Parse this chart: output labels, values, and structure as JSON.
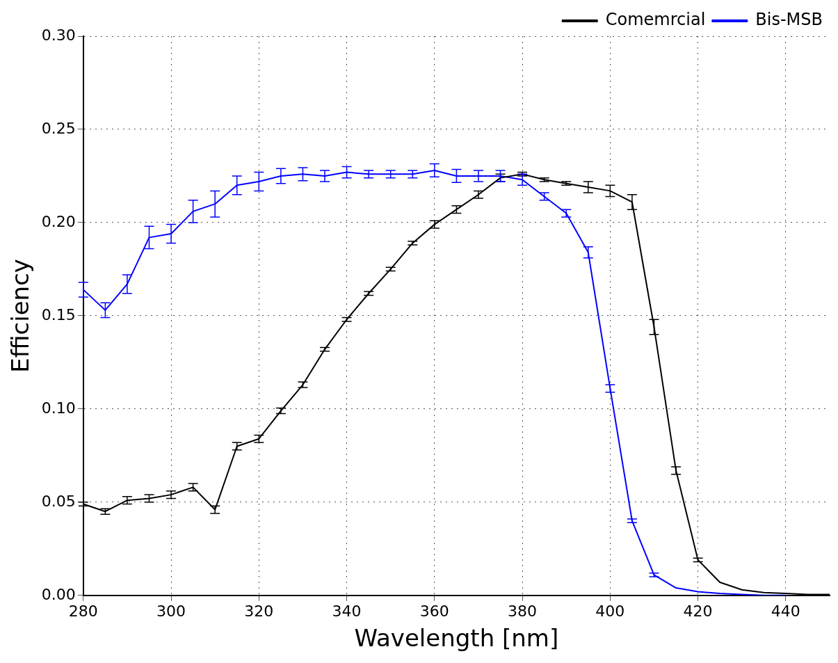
{
  "chart_data": {
    "type": "line",
    "xlabel": "Wavelength [nm]",
    "ylabel": "Efficiency",
    "x": [
      280,
      285,
      290,
      295,
      300,
      305,
      310,
      315,
      320,
      325,
      330,
      335,
      340,
      345,
      350,
      355,
      360,
      365,
      370,
      375,
      380,
      385,
      390,
      395,
      400,
      405,
      410,
      415,
      420,
      425,
      430,
      435,
      440,
      445,
      450
    ],
    "series": [
      {
        "name": "Comemrcial",
        "color": "#000000",
        "values": [
          0.049,
          0.045,
          0.051,
          0.052,
          0.054,
          0.058,
          0.046,
          0.08,
          0.084,
          0.099,
          0.113,
          0.132,
          0.148,
          0.162,
          0.175,
          0.189,
          0.199,
          0.207,
          0.215,
          0.224,
          0.226,
          0.223,
          0.221,
          0.219,
          0.217,
          0.211,
          0.144,
          0.067,
          0.019,
          0.007,
          0.003,
          0.0015,
          0.001,
          0.0005,
          0.0005
        ],
        "errors": [
          0.001,
          0.0015,
          0.002,
          0.002,
          0.002,
          0.002,
          0.002,
          0.002,
          0.002,
          0.0015,
          0.0015,
          0.001,
          0.001,
          0.001,
          0.001,
          0.001,
          0.002,
          0.002,
          0.002,
          0.002,
          0.001,
          0.001,
          0.001,
          0.003,
          0.003,
          0.004,
          0.004,
          0.002,
          0.001,
          null,
          null,
          null,
          null,
          null,
          null
        ]
      },
      {
        "name": "Bis-MSB",
        "color": "#0000ff",
        "values": [
          0.164,
          0.153,
          0.167,
          0.192,
          0.194,
          0.206,
          0.21,
          0.22,
          0.222,
          0.225,
          0.226,
          0.225,
          0.227,
          0.226,
          0.226,
          0.226,
          0.228,
          0.225,
          0.225,
          0.225,
          0.223,
          0.214,
          0.205,
          0.184,
          0.111,
          0.04,
          0.011,
          0.004,
          0.002,
          0.001,
          0.0005,
          0,
          0,
          null,
          null
        ],
        "errors": [
          0.004,
          0.004,
          0.005,
          0.006,
          0.005,
          0.006,
          0.007,
          0.005,
          0.005,
          0.004,
          0.0035,
          0.003,
          0.003,
          0.002,
          0.002,
          0.002,
          0.0035,
          0.0035,
          0.003,
          0.003,
          0.003,
          0.002,
          0.002,
          0.003,
          0.002,
          0.001,
          0.001,
          null,
          null,
          null,
          null,
          null,
          null,
          null,
          null
        ]
      }
    ],
    "xlim": [
      280,
      450
    ],
    "xticks": [
      280,
      300,
      320,
      340,
      360,
      380,
      400,
      420,
      440
    ],
    "ylim": [
      0,
      0.3
    ],
    "yticks": [
      {
        "value": 0,
        "label": "0.00"
      },
      {
        "value": 0.05,
        "label": "0.05"
      },
      {
        "value": 0.1,
        "label": "0.10"
      },
      {
        "value": 0.15,
        "label": "0.15"
      },
      {
        "value": 0.2,
        "label": "0.20"
      },
      {
        "value": 0.25,
        "label": "0.25"
      },
      {
        "value": 0.3,
        "label": "0.30"
      }
    ],
    "grid": true,
    "legend": "top right",
    "marker": "none",
    "line_style": "solid"
  }
}
